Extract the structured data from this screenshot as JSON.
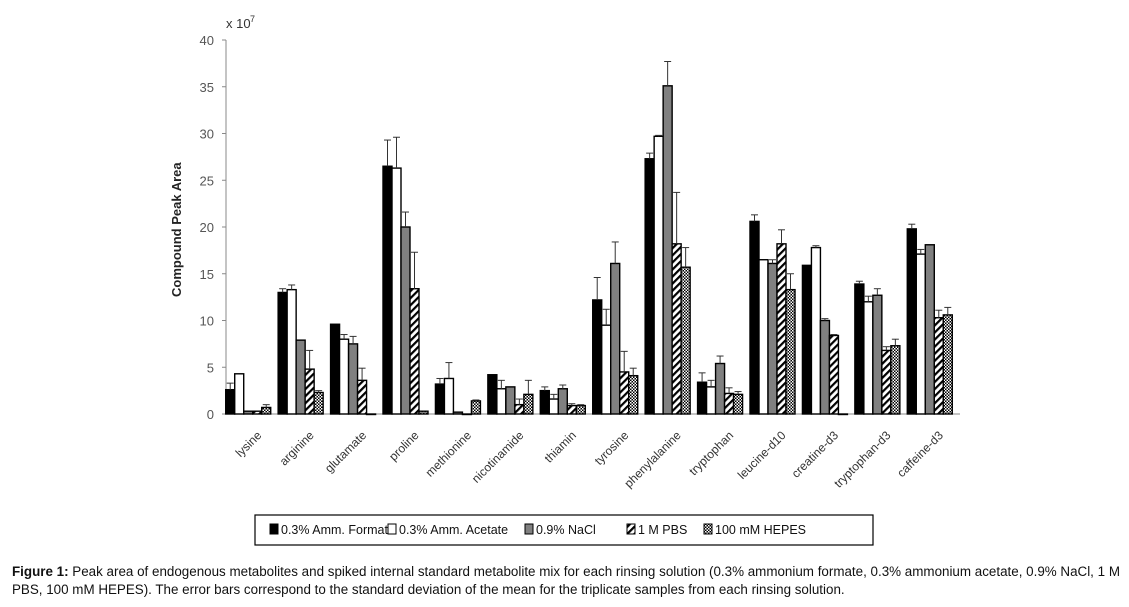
{
  "chart_data": {
    "type": "bar",
    "title": "",
    "ylabel": "Compound Peak Area",
    "xlabel": "",
    "y_multiplier": "x 10",
    "y_multiplier_exp": "7",
    "ylim": [
      0,
      40
    ],
    "yticks": [
      "0",
      "5",
      "10",
      "15",
      "20",
      "25",
      "30",
      "35",
      "40"
    ],
    "grid": false,
    "legend_position": "bottom",
    "categories": [
      "lysine",
      "arginine",
      "glutamate",
      "proline",
      "methionine",
      "nicotinamide",
      "thiamin",
      "tyrosine",
      "phenylalanine",
      "tryptophan",
      "leucine-d10",
      "creatine-d3",
      "tryptophan-d3",
      "caffeine-d3"
    ],
    "series": [
      {
        "name": "0.3% Amm. Formate",
        "fill": "#000000",
        "pattern": "solid",
        "values": [
          2.6,
          13.0,
          9.6,
          26.5,
          3.2,
          4.2,
          2.5,
          12.2,
          27.3,
          3.4,
          20.6,
          15.9,
          13.9,
          19.8
        ],
        "errors": [
          0.7,
          0.4,
          0,
          2.8,
          0.6,
          0,
          0.4,
          2.4,
          0.6,
          1.0,
          0.7,
          0,
          0.3,
          0.5
        ]
      },
      {
        "name": "0.3% Amm. Acetate",
        "fill": "#ffffff",
        "pattern": "solid",
        "values": [
          4.3,
          13.3,
          8.0,
          26.3,
          3.8,
          2.7,
          1.6,
          9.5,
          29.7,
          2.9,
          16.5,
          17.8,
          12.0,
          17.1
        ],
        "errors": [
          0,
          0.5,
          0.5,
          3.3,
          1.7,
          0.9,
          0.5,
          1.7,
          0.1,
          0.7,
          0,
          0.2,
          0.6,
          0.5
        ]
      },
      {
        "name": "0.9% NaCl",
        "fill": "#808080",
        "pattern": "solid",
        "values": [
          0.3,
          7.9,
          7.5,
          20.0,
          0.2,
          2.9,
          2.7,
          16.1,
          35.1,
          5.4,
          16.1,
          10.0,
          12.7,
          18.1
        ],
        "errors": [
          0,
          0,
          0.8,
          1.6,
          0,
          0,
          0.4,
          2.3,
          2.6,
          0.8,
          0.4,
          0.2,
          0.7,
          0
        ]
      },
      {
        "name": "1 M PBS",
        "fill": "#ffffff",
        "pattern": "hatch",
        "values": [
          0.3,
          4.8,
          3.6,
          13.4,
          0,
          1.0,
          0.9,
          4.5,
          18.2,
          2.2,
          18.2,
          8.4,
          6.8,
          10.3
        ],
        "errors": [
          0,
          2.0,
          1.3,
          3.9,
          0,
          0.6,
          0.2,
          2.2,
          5.5,
          0.6,
          1.5,
          0.1,
          0.4,
          0.8
        ]
      },
      {
        "name": "100 mM HEPES",
        "fill": "#000000",
        "pattern": "checker",
        "values": [
          0.7,
          2.3,
          0,
          0.3,
          1.4,
          2.1,
          0.9,
          4.1,
          15.7,
          2.1,
          13.3,
          0,
          7.3,
          10.6
        ],
        "errors": [
          0.3,
          0.2,
          0,
          0,
          0.1,
          1.5,
          0.1,
          0.8,
          2.1,
          0.3,
          1.7,
          0,
          0.7,
          0.8
        ]
      }
    ]
  },
  "caption": {
    "label": "Figure 1:",
    "text": " Peak area of endogenous metabolites and spiked internal standard metabolite mix for each rinsing solution (0.3% ammonium formate, 0.3% ammonium acetate, 0.9% NaCl, 1 M PBS, 100 mM HEPES). The error bars correspond to the standard deviation of the mean for the triplicate samples from each rinsing solution."
  }
}
